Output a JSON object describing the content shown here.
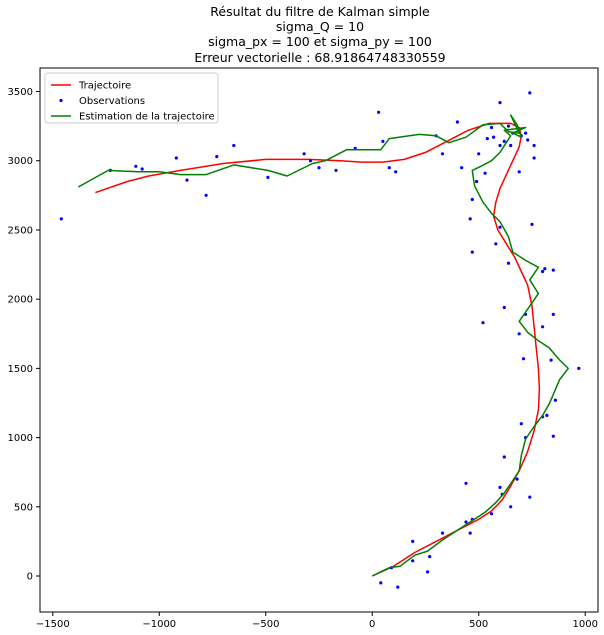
{
  "chart_data": {
    "type": "line",
    "title_lines": [
      "Résultat du filtre de Kalman simple",
      "sigma_Q = 10",
      "sigma_px = 100 et sigma_py = 100",
      "Erreur vectorielle : 68.91864748330559"
    ],
    "xlabel": "",
    "ylabel": "",
    "xlim": [
      -1560,
      1060
    ],
    "ylim": [
      -260,
      3670
    ],
    "xticks": [
      -1500,
      -1000,
      -500,
      0,
      500,
      1000
    ],
    "yticks": [
      0,
      500,
      1000,
      1500,
      2000,
      2500,
      3000,
      3500
    ],
    "grid": false,
    "legend_position": "top-left",
    "series": [
      {
        "name": "Trajectoire",
        "kind": "line",
        "color": "#ff0000",
        "points": [
          [
            0,
            0
          ],
          [
            100,
            70
          ],
          [
            200,
            170
          ],
          [
            300,
            250
          ],
          [
            400,
            330
          ],
          [
            500,
            410
          ],
          [
            560,
            470
          ],
          [
            610,
            550
          ],
          [
            650,
            650
          ],
          [
            690,
            760
          ],
          [
            730,
            900
          ],
          [
            760,
            1050
          ],
          [
            780,
            1200
          ],
          [
            785,
            1350
          ],
          [
            780,
            1500
          ],
          [
            770,
            1650
          ],
          [
            760,
            1800
          ],
          [
            750,
            1950
          ],
          [
            730,
            2100
          ],
          [
            700,
            2200
          ],
          [
            670,
            2300
          ],
          [
            630,
            2400
          ],
          [
            590,
            2500
          ],
          [
            570,
            2600
          ],
          [
            580,
            2700
          ],
          [
            600,
            2800
          ],
          [
            630,
            2900
          ],
          [
            660,
            3000
          ],
          [
            690,
            3100
          ],
          [
            700,
            3180
          ],
          [
            690,
            3240
          ],
          [
            650,
            3270
          ],
          [
            550,
            3270
          ],
          [
            450,
            3220
          ],
          [
            350,
            3140
          ],
          [
            250,
            3060
          ],
          [
            150,
            3010
          ],
          [
            50,
            2990
          ],
          [
            -50,
            2990
          ],
          [
            -150,
            3000
          ],
          [
            -300,
            3010
          ],
          [
            -500,
            3010
          ],
          [
            -700,
            2980
          ],
          [
            -900,
            2930
          ],
          [
            -1050,
            2890
          ],
          [
            -1150,
            2850
          ],
          [
            -1300,
            2770
          ]
        ]
      },
      {
        "name": "Observations",
        "kind": "scatter",
        "color": "#0000ff",
        "points": [
          [
            40,
            -50
          ],
          [
            120,
            -80
          ],
          [
            90,
            60
          ],
          [
            190,
            110
          ],
          [
            190,
            250
          ],
          [
            260,
            30
          ],
          [
            270,
            140
          ],
          [
            330,
            310
          ],
          [
            440,
            670
          ],
          [
            440,
            390
          ],
          [
            460,
            310
          ],
          [
            470,
            410
          ],
          [
            560,
            450
          ],
          [
            600,
            640
          ],
          [
            610,
            590
          ],
          [
            620,
            860
          ],
          [
            650,
            500
          ],
          [
            680,
            700
          ],
          [
            700,
            1100
          ],
          [
            720,
            1000
          ],
          [
            740,
            570
          ],
          [
            800,
            1150
          ],
          [
            820,
            1160
          ],
          [
            850,
            1010
          ],
          [
            860,
            1270
          ],
          [
            840,
            1560
          ],
          [
            970,
            1500
          ],
          [
            710,
            1570
          ],
          [
            690,
            1750
          ],
          [
            800,
            1800
          ],
          [
            720,
            1890
          ],
          [
            850,
            1890
          ],
          [
            620,
            1940
          ],
          [
            520,
            1830
          ],
          [
            800,
            2200
          ],
          [
            810,
            2220
          ],
          [
            850,
            2210
          ],
          [
            640,
            2260
          ],
          [
            580,
            2400
          ],
          [
            600,
            2520
          ],
          [
            470,
            2340
          ],
          [
            460,
            2580
          ],
          [
            470,
            2720
          ],
          [
            490,
            2850
          ],
          [
            530,
            2910
          ],
          [
            500,
            3050
          ],
          [
            540,
            3160
          ],
          [
            570,
            3170
          ],
          [
            560,
            3240
          ],
          [
            600,
            3110
          ],
          [
            620,
            3140
          ],
          [
            600,
            3420
          ],
          [
            640,
            3250
          ],
          [
            650,
            3110
          ],
          [
            660,
            3200
          ],
          [
            700,
            3180
          ],
          [
            720,
            3200
          ],
          [
            730,
            3150
          ],
          [
            760,
            3110
          ],
          [
            760,
            3020
          ],
          [
            690,
            2920
          ],
          [
            750,
            2540
          ],
          [
            740,
            3490
          ],
          [
            330,
            3050
          ],
          [
            300,
            3180
          ],
          [
            400,
            3280
          ],
          [
            420,
            2950
          ],
          [
            80,
            2950
          ],
          [
            110,
            2920
          ],
          [
            50,
            3140
          ],
          [
            -80,
            3090
          ],
          [
            30,
            3350
          ],
          [
            -170,
            2930
          ],
          [
            -250,
            2950
          ],
          [
            -290,
            3000
          ],
          [
            -320,
            3050
          ],
          [
            -490,
            2880
          ],
          [
            -650,
            3110
          ],
          [
            -730,
            3030
          ],
          [
            -780,
            2750
          ],
          [
            -870,
            2860
          ],
          [
            -920,
            3020
          ],
          [
            -1080,
            2940
          ],
          [
            -1110,
            2960
          ],
          [
            -1230,
            2930
          ],
          [
            -1460,
            2580
          ]
        ]
      },
      {
        "name": "Estimation de la trajectoire",
        "kind": "line",
        "color": "#008000",
        "points": [
          [
            0,
            0
          ],
          [
            80,
            60
          ],
          [
            130,
            70
          ],
          [
            200,
            150
          ],
          [
            260,
            180
          ],
          [
            330,
            260
          ],
          [
            400,
            330
          ],
          [
            470,
            400
          ],
          [
            530,
            460
          ],
          [
            580,
            530
          ],
          [
            620,
            600
          ],
          [
            660,
            690
          ],
          [
            690,
            760
          ],
          [
            700,
            870
          ],
          [
            720,
            990
          ],
          [
            760,
            1080
          ],
          [
            800,
            1160
          ],
          [
            830,
            1240
          ],
          [
            880,
            1420
          ],
          [
            920,
            1500
          ],
          [
            880,
            1560
          ],
          [
            830,
            1650
          ],
          [
            780,
            1700
          ],
          [
            730,
            1760
          ],
          [
            690,
            1840
          ],
          [
            740,
            1950
          ],
          [
            780,
            2040
          ],
          [
            740,
            2140
          ],
          [
            780,
            2230
          ],
          [
            720,
            2280
          ],
          [
            660,
            2340
          ],
          [
            640,
            2450
          ],
          [
            600,
            2560
          ],
          [
            560,
            2620
          ],
          [
            520,
            2700
          ],
          [
            480,
            2820
          ],
          [
            470,
            2930
          ],
          [
            510,
            2960
          ],
          [
            560,
            3000
          ],
          [
            600,
            3060
          ],
          [
            650,
            3180
          ],
          [
            620,
            3220
          ],
          [
            670,
            3230
          ],
          [
            720,
            3240
          ],
          [
            660,
            3200
          ],
          [
            700,
            3170
          ],
          [
            680,
            3260
          ],
          [
            650,
            3330
          ],
          [
            690,
            3200
          ],
          [
            640,
            3210
          ],
          [
            600,
            3270
          ],
          [
            520,
            3260
          ],
          [
            440,
            3170
          ],
          [
            360,
            3130
          ],
          [
            300,
            3180
          ],
          [
            220,
            3190
          ],
          [
            80,
            3160
          ],
          [
            40,
            3080
          ],
          [
            -120,
            3080
          ],
          [
            -220,
            3000
          ],
          [
            -280,
            2980
          ],
          [
            -400,
            2890
          ],
          [
            -490,
            2930
          ],
          [
            -650,
            2970
          ],
          [
            -780,
            2900
          ],
          [
            -900,
            2900
          ],
          [
            -1000,
            2920
          ],
          [
            -1100,
            2920
          ],
          [
            -1240,
            2930
          ],
          [
            -1380,
            2810
          ]
        ]
      }
    ]
  }
}
